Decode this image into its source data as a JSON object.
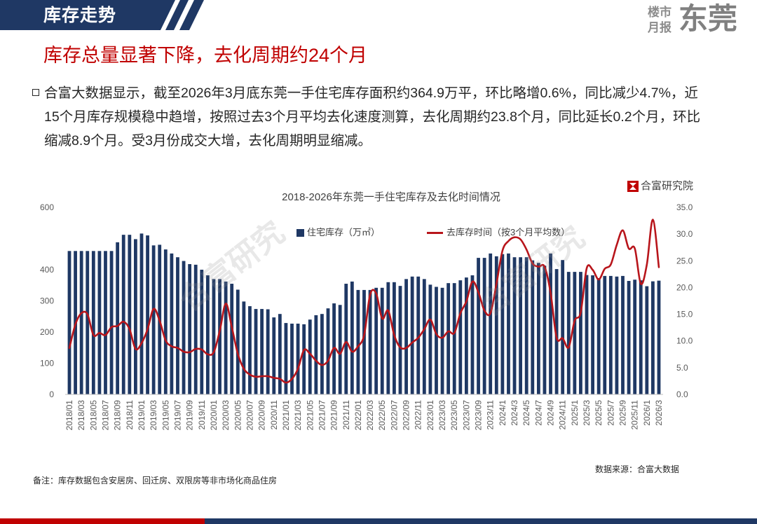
{
  "header": {
    "section_title": "库存走势"
  },
  "logo": {
    "line1": "楼市",
    "line2": "月报",
    "city": "东莞"
  },
  "headline": "库存总量显著下降，去化周期约24个月",
  "body": {
    "line1": "合富大数据显示，截至2026年3月底东莞一手住宅库存面积约364.9万平，环比略增0.6%，同比减少4.7%，近",
    "line2": "15个月库存规模稳中趋增，按照过去3个月平均去化速度测算，去化周期约23.8个月，同比延长0.2个月，环比",
    "line3": "缩减8.9个月。受3月份成交大增，去化周期明显缩减。"
  },
  "chart_brand": "合富研究院",
  "watermark": "合富研究",
  "colors": {
    "navy": "#1f3864",
    "red": "#c00000",
    "bar": "#1f3864",
    "line": "#b8151b",
    "logo_gray": "#808080"
  },
  "chart_data": {
    "type": "bar",
    "title": "2018-2026年东莞一手住宅库存及去化时间情况",
    "categories": [
      "2018/01",
      "2018/02",
      "2018/03",
      "2018/04",
      "2018/05",
      "2018/06",
      "2018/07",
      "2018/08",
      "2018/09",
      "2018/10",
      "2018/11",
      "2018/12",
      "2019/01",
      "2019/02",
      "2019/03",
      "2019/04",
      "2019/05",
      "2019/06",
      "2019/07",
      "2019/08",
      "2019/09",
      "2019/10",
      "2019/11",
      "2019/12",
      "2020/01",
      "2020/02",
      "2020/03",
      "2020/04",
      "2020/05",
      "2020/06",
      "2020/07",
      "2020/08",
      "2020/09",
      "2020/10",
      "2020/11",
      "2020/12",
      "2021/01",
      "2021/02",
      "2021/03",
      "2021/04",
      "2021/05",
      "2021/06",
      "2021/07",
      "2021/08",
      "2021/09",
      "2021/10",
      "2021/11",
      "2021/12",
      "2022/01",
      "2022/02",
      "2022/03",
      "2022/04",
      "2022/05",
      "2022/06",
      "2022/07",
      "2022/08",
      "2022/09",
      "2022/10",
      "2022/11",
      "2022/12",
      "2023/01",
      "2023/02",
      "2023/03",
      "2023/04",
      "2023/05",
      "2023/06",
      "2023/07",
      "2023/08",
      "2023/09",
      "2023/10",
      "2023/11",
      "2023/12",
      "2024/1",
      "2024/2",
      "2024/3",
      "2024/4",
      "2024/5",
      "2024/6",
      "2024/7",
      "2024/8",
      "2024/9",
      "2024/10",
      "2024/11",
      "2024/12",
      "2025/1",
      "2025/2",
      "2025/3",
      "2025/4",
      "2025/5",
      "2025/6",
      "2025/7",
      "2025/8",
      "2025/9",
      "2025/10",
      "2025/11",
      "2025/12",
      "2026/1",
      "2026/2",
      "2026/3"
    ],
    "series": [
      {
        "name": "住宅库存（万㎡）",
        "type": "bar",
        "axis": "left",
        "values": [
          460,
          460,
          460,
          460,
          460,
          460,
          460,
          460,
          488,
          512,
          512,
          498,
          516,
          510,
          478,
          480,
          465,
          452,
          440,
          428,
          418,
          416,
          400,
          382,
          370,
          370,
          362,
          355,
          336,
          298,
          283,
          274,
          274,
          273,
          247,
          258,
          229,
          227,
          227,
          225,
          240,
          254,
          258,
          276,
          292,
          287,
          355,
          362,
          335,
          335,
          335,
          342,
          342,
          360,
          360,
          348,
          370,
          378,
          378,
          370,
          352,
          345,
          342,
          357,
          357,
          366,
          375,
          382,
          438,
          438,
          452,
          443,
          450,
          452,
          440,
          440,
          440,
          430,
          422,
          413,
          452,
          402,
          431,
          393,
          393,
          393,
          383,
          382,
          373,
          380,
          380,
          378,
          380,
          364,
          368,
          366,
          347,
          362.7,
          364.9
        ]
      },
      {
        "name": "去库存时间（按3个月平均数）",
        "type": "line",
        "axis": "right",
        "values": [
          8.7,
          13.1,
          15.2,
          15.0,
          11.1,
          11.5,
          11.1,
          12.6,
          12.8,
          13.6,
          12.2,
          8.5,
          9.6,
          12.2,
          16.0,
          13.8,
          10.1,
          9.0,
          8.7,
          8.0,
          7.9,
          8.5,
          8.4,
          7.5,
          7.9,
          11.9,
          17.0,
          12.6,
          7.6,
          4.8,
          3.7,
          3.3,
          3.4,
          3.4,
          3.1,
          2.9,
          2.2,
          2.9,
          4.8,
          8.3,
          7.6,
          6.3,
          5.5,
          6.3,
          8.7,
          7.6,
          9.8,
          8.0,
          9.0,
          11.1,
          18.7,
          18.9,
          14.2,
          15.7,
          11.1,
          8.8,
          8.7,
          9.7,
          10.6,
          12.2,
          14.0,
          11.3,
          10.6,
          11.8,
          11.5,
          15.2,
          17.4,
          21.1,
          19.1,
          15.7,
          15.2,
          20.7,
          26.9,
          28.7,
          29.4,
          29.0,
          27.1,
          24.5,
          23.9,
          23.9,
          19.0,
          10.6,
          10.5,
          8.8,
          13.8,
          15.3,
          23.6,
          23.3,
          21.5,
          23.5,
          24.3,
          28.0,
          30.7,
          27.3,
          27.3,
          20.7,
          24.3,
          32.7,
          23.8
        ]
      }
    ],
    "ylim": [
      0,
      600
    ],
    "y2lim": [
      0,
      35
    ],
    "yticks": [
      "0",
      "100",
      "200",
      "300",
      "400",
      "600"
    ],
    "y2ticks": [
      "0.0",
      "5.0",
      "10.0",
      "15.0",
      "20.0",
      "25.0",
      "30.0",
      "35.0"
    ],
    "grid": false,
    "legend": "top-center"
  },
  "notes": {
    "source": "数据来源：合富大数据",
    "remark": "备注：库存数据包含安居房、回迁房、双限房等非市场化商品住房"
  }
}
